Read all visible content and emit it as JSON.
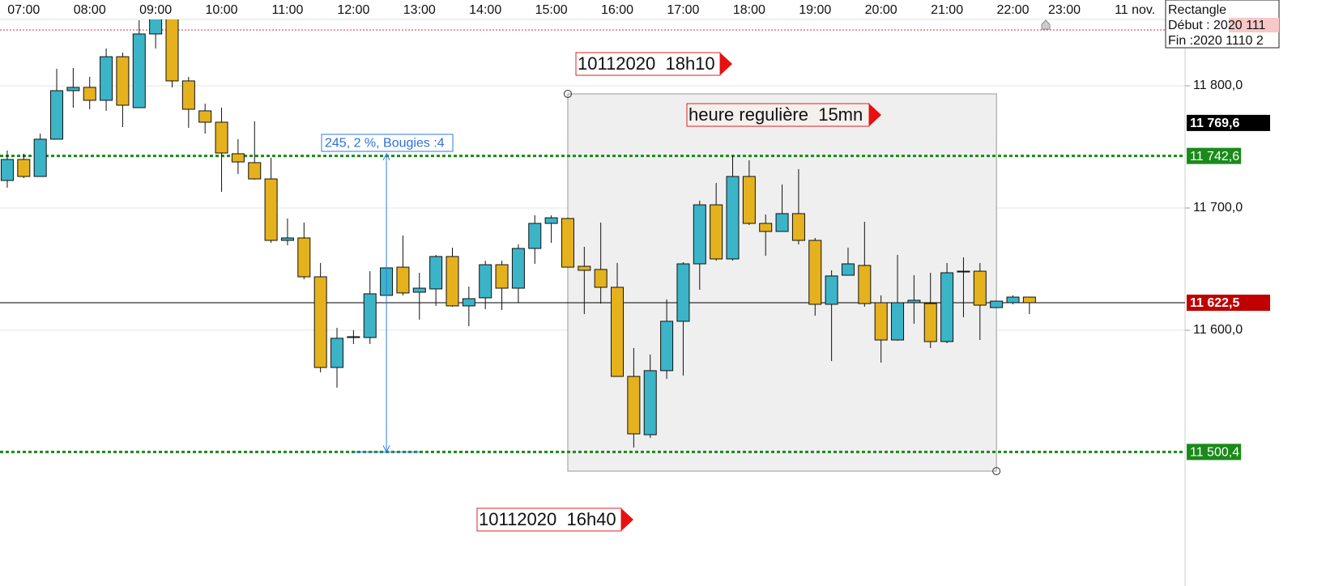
{
  "chart_data": {
    "type": "candlestick",
    "up_color": "#3bb4c8",
    "down_color": "#e5b21e",
    "x": [
      6.75,
      7,
      7.25,
      7.5,
      7.75,
      8,
      8.25,
      8.5,
      8.75,
      9,
      9.25,
      9.5,
      9.75,
      10,
      10.25,
      10.5,
      10.75,
      11,
      11.25,
      11.5,
      11.75,
      12,
      12.25,
      12.5,
      12.75,
      13,
      13.25,
      13.5,
      13.75,
      14,
      14.25,
      14.5,
      14.75,
      15,
      15.25,
      15.5,
      15.75,
      16,
      16.25,
      16.5,
      16.75,
      17,
      17.25,
      17.5,
      17.75,
      18,
      18.25,
      18.5,
      18.75,
      19,
      19.25,
      19.5,
      19.75,
      20,
      20.25,
      20.5,
      20.75,
      21,
      21.25,
      21.5,
      21.75,
      22,
      22.25
    ],
    "open": [
      11722.5,
      11739.7,
      11725.8,
      11756.3,
      11796,
      11798.7,
      11788.1,
      11823.8,
      11782.1,
      11842.4,
      11858,
      11804,
      11779.5,
      11770.2,
      11744.4,
      11737.1,
      11723.8,
      11673.5,
      11675.5,
      11643.7,
      11569.5,
      11594,
      11594,
      11628.5,
      11651.6,
      11631.1,
      11633.8,
      11660.3,
      11619.9,
      11626.5,
      11653.6,
      11634.4,
      11666.9,
      11687.4,
      11691.4,
      11652.3,
      11649.7,
      11635.1,
      11562.2,
      11514.5,
      11566.9,
      11607.3,
      11654.3,
      11702.6,
      11658.3,
      11725.8,
      11687.4,
      11680.8,
      11695.4,
      11673.5,
      11621.2,
      11645,
      11653,
      11622.5,
      11592,
      11622.5,
      11621.8,
      11590.7,
      11648.3,
      11648.3,
      11618.5,
      11622.5,
      11627.1
    ],
    "high": [
      11747,
      11744.4,
      11760.9,
      11813.9,
      11814.6,
      11807.3,
      11830.5,
      11827.2,
      11853.6,
      11870,
      11866,
      11807.3,
      11785.4,
      11782.1,
      11756.3,
      11770.9,
      11741.1,
      11691.4,
      11688.1,
      11655,
      11602,
      11600,
      11648.3,
      11651,
      11677.5,
      11647,
      11661.6,
      11667.5,
      11635.7,
      11656.9,
      11656.9,
      11670.2,
      11694,
      11694,
      11692,
      11668.2,
      11688.1,
      11655,
      11585.4,
      11580.1,
      11625.2,
      11655.6,
      11706,
      11720.5,
      11743,
      11739.1,
      11694.7,
      11719.2,
      11731.8,
      11675.5,
      11649,
      11667.5,
      11688.7,
      11628.5,
      11661.6,
      11645,
      11647,
      11655,
      11659.6,
      11655,
      11623.8,
      11628.5,
      11627.1
    ],
    "low": [
      11716.6,
      11724.5,
      11725.8,
      11756.3,
      11782.1,
      11780.8,
      11779.5,
      11766.2,
      11782.1,
      11830.5,
      11798.7,
      11765.6,
      11760.9,
      11713.2,
      11727.8,
      11723.2,
      11671.5,
      11669.5,
      11641.7,
      11565.5,
      11553,
      11588.7,
      11588.7,
      11628.5,
      11628.5,
      11608.6,
      11619.9,
      11619.2,
      11603.3,
      11617.2,
      11616.5,
      11622.5,
      11654.3,
      11671.5,
      11651.6,
      11613.2,
      11621.8,
      11562.2,
      11504,
      11511.9,
      11560.2,
      11562.9,
      11633.1,
      11656.9,
      11656.9,
      11686.1,
      11660.9,
      11680.8,
      11670.2,
      11611.9,
      11574.8,
      11645,
      11619.2,
      11573.5,
      11591.4,
      11605.3,
      11585.4,
      11589.4,
      11610.6,
      11592,
      11618.5,
      11621.2,
      11613.2
    ],
    "close": [
      11739.7,
      11725.8,
      11756.3,
      11796,
      11798.7,
      11788.1,
      11823.8,
      11784.1,
      11842.4,
      11862,
      11804,
      11780.8,
      11770.2,
      11745,
      11737.7,
      11723.8,
      11673.5,
      11675.5,
      11643.7,
      11569.5,
      11593.4,
      11594.7,
      11629.8,
      11651,
      11630.5,
      11634.4,
      11660.3,
      11619.9,
      11625.8,
      11653.6,
      11634.4,
      11666.9,
      11687.4,
      11692,
      11651.6,
      11649,
      11635.1,
      11562.2,
      11515.2,
      11566.9,
      11607.3,
      11654.3,
      11702.6,
      11658.3,
      11725.8,
      11687.4,
      11680.8,
      11695.4,
      11673.5,
      11621.2,
      11644.4,
      11654.3,
      11621.8,
      11592,
      11622.5,
      11624.5,
      11590.7,
      11647,
      11647.7,
      11620.5,
      11623.8,
      11627.1,
      11622.5
    ],
    "xlim": [
      6.64,
      24.61
    ],
    "ylim": [
      11390.7,
      11854.3
    ],
    "xticks": [
      {
        "value": 7,
        "label": "07:00"
      },
      {
        "value": 8,
        "label": "08:00"
      },
      {
        "value": 9,
        "label": "09:00"
      },
      {
        "value": 10,
        "label": "10:00"
      },
      {
        "value": 11,
        "label": "11:00"
      },
      {
        "value": 12,
        "label": "12:00"
      },
      {
        "value": 13,
        "label": "13:00"
      },
      {
        "value": 14,
        "label": "14:00"
      },
      {
        "value": 15,
        "label": "15:00"
      },
      {
        "value": 16,
        "label": "16:00"
      },
      {
        "value": 17,
        "label": "17:00"
      },
      {
        "value": 18,
        "label": "18:00"
      },
      {
        "value": 19,
        "label": "19:00"
      },
      {
        "value": 20,
        "label": "20:00"
      },
      {
        "value": 21,
        "label": "21:00"
      },
      {
        "value": 22,
        "label": "22:00"
      },
      {
        "value": 22.78,
        "label": "23:00"
      },
      {
        "value": 23.85,
        "label": "11 nov."
      }
    ],
    "yticks": [
      {
        "value": 11800,
        "label": "11 800,0"
      },
      {
        "value": 11700,
        "label": "11 700,0"
      },
      {
        "value": 11600,
        "label": "11 600,0"
      }
    ],
    "grid": true,
    "levels": [
      {
        "value": 11845.7,
        "color": "#e03030",
        "style": "dotted",
        "line": true
      },
      {
        "value": 11769.6,
        "label": "11 769,6",
        "badge": "#000000",
        "line": false
      },
      {
        "value": 11742.6,
        "label": "11 742,6",
        "color": "#1a8a1a",
        "badge": "#1a8a1a",
        "style": "dotted",
        "line": true
      },
      {
        "value": 11622.5,
        "label": "11 622,5",
        "color": "#000000",
        "badge": "#c00000",
        "style": "solid",
        "line": true
      },
      {
        "value": 11500.4,
        "label": "11 500,4",
        "color": "#1a8a1a",
        "badge": "#1a8a1a",
        "style": "dotted",
        "line": true
      }
    ],
    "rectangle": {
      "x0": 15.25,
      "x1": 21.75,
      "y0": 11793.4,
      "y1": 11484.7
    },
    "measure": {
      "label": "245, 2 %, Bougies :4",
      "x": 12.5,
      "from": 11744.4,
      "to": 11500.4
    },
    "labels": [
      "10112020  18h10",
      "heure regulière  15mn",
      "10112020  16h40"
    ],
    "info_box": {
      "title": "Rectangle",
      "lines": [
        "Début : 2020 111",
        "Fin :2020 1110 2"
      ]
    }
  }
}
